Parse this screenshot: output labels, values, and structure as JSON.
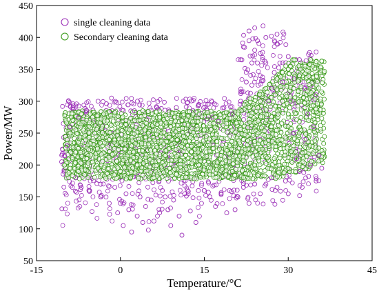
{
  "chart_data": {
    "type": "scatter",
    "title": "",
    "xlabel": "Temperature/°C",
    "ylabel": "Power/MW",
    "xlim": [
      -15,
      45
    ],
    "ylim": [
      50,
      450
    ],
    "x_ticks": [
      -15,
      0,
      15,
      30,
      45
    ],
    "y_ticks": [
      50,
      100,
      150,
      200,
      250,
      300,
      350,
      400,
      450
    ],
    "grid": false,
    "legend_position": "top-left",
    "series": [
      {
        "name": "single cleaning data",
        "color": "#9b30b8",
        "marker": "open-circle",
        "points": [
          [
            -10.5,
            205
          ],
          [
            -10,
            215
          ],
          [
            -9.5,
            230
          ],
          [
            -9,
            260
          ],
          [
            -8.5,
            290
          ],
          [
            -8,
            180
          ],
          [
            -7.5,
            275
          ],
          [
            -7,
            165
          ],
          [
            -6,
            285
          ],
          [
            -5.5,
            160
          ],
          [
            -4,
            300
          ],
          [
            -3.5,
            150
          ],
          [
            -2.5,
            296
          ],
          [
            -2,
            140
          ],
          [
            -1.5,
            285
          ],
          [
            -1,
            165
          ],
          [
            -0.5,
            125
          ],
          [
            0,
            140
          ],
          [
            0.5,
            105
          ],
          [
            1,
            155
          ],
          [
            1.5,
            130
          ],
          [
            2,
            95
          ],
          [
            2.5,
            285
          ],
          [
            3,
            120
          ],
          [
            3.5,
            150
          ],
          [
            4,
            110
          ],
          [
            4.5,
            135
          ],
          [
            5,
            98
          ],
          [
            5.5,
            145
          ],
          [
            6,
            112
          ],
          [
            6.5,
            290
          ],
          [
            7,
            125
          ],
          [
            7.5,
            160
          ],
          [
            8,
            150
          ],
          [
            8.5,
            130
          ],
          [
            9,
            105
          ],
          [
            9.5,
            145
          ],
          [
            10,
            290
          ],
          [
            10.5,
            120
          ],
          [
            11,
            90
          ],
          [
            11.5,
            155
          ],
          [
            12,
            298
          ],
          [
            12.5,
            128
          ],
          [
            13,
            285
          ],
          [
            13.5,
            110
          ],
          [
            14,
            295
          ],
          [
            14.5,
            140
          ],
          [
            15,
            160
          ],
          [
            15.5,
            272
          ],
          [
            16,
            150
          ],
          [
            16.5,
            275
          ],
          [
            17,
            135
          ],
          [
            17.5,
            268
          ],
          [
            18,
            155
          ],
          [
            18.5,
            290
          ],
          [
            19,
            125
          ],
          [
            19.5,
            160
          ],
          [
            20,
            280
          ],
          [
            20.5,
            130
          ],
          [
            21,
            150
          ],
          [
            21.5,
            300
          ],
          [
            22,
            165
          ],
          [
            22.5,
            330
          ],
          [
            23,
            140
          ],
          [
            23.5,
            360
          ],
          [
            23,
            410
          ],
          [
            24,
            415
          ],
          [
            24.5,
            395
          ],
          [
            25,
            340
          ],
          [
            25.5,
            418
          ],
          [
            24,
            380
          ],
          [
            23.5,
            325
          ],
          [
            26,
            360
          ],
          [
            26.5,
            300
          ],
          [
            27,
            402
          ],
          [
            27.5,
            345
          ],
          [
            28,
            390
          ],
          [
            28.5,
            360
          ],
          [
            27,
            320
          ],
          [
            26,
            400
          ],
          [
            25,
            375
          ],
          [
            22,
            385
          ],
          [
            21.5,
            365
          ],
          [
            22.5,
            345
          ],
          [
            23,
            395
          ],
          [
            24.5,
            360
          ],
          [
            28,
            405
          ],
          [
            29,
            330
          ],
          [
            30,
            370
          ],
          [
            30.5,
            300
          ],
          [
            31,
            250
          ],
          [
            31.5,
            210
          ],
          [
            32,
            190
          ],
          [
            32.5,
            165
          ],
          [
            33,
            240
          ],
          [
            33.5,
            280
          ],
          [
            34,
            200
          ],
          [
            34.5,
            260
          ],
          [
            35,
            175
          ],
          [
            35.5,
            215
          ],
          [
            36,
            195
          ],
          [
            33,
            320
          ],
          [
            32,
            365
          ],
          [
            31,
            335
          ],
          [
            29.5,
            175
          ],
          [
            28,
            165
          ],
          [
            27,
            180
          ],
          [
            26,
            170
          ],
          [
            25,
            155
          ],
          [
            24,
            170
          ],
          [
            30,
            155
          ],
          [
            35,
            310
          ]
        ]
      },
      {
        "name": "Secondary cleaning data",
        "color": "#3a9a1a",
        "marker": "open-circle",
        "points": [
          [
            -10,
            200
          ],
          [
            -9.5,
            240
          ],
          [
            -9,
            250
          ],
          [
            -9,
            195
          ],
          [
            -8.5,
            270
          ],
          [
            -8,
            220
          ],
          [
            -7.5,
            190
          ],
          [
            -7,
            280
          ],
          [
            -6,
            210
          ],
          [
            -5,
            275
          ],
          [
            -4,
            195
          ],
          [
            -3,
            280
          ],
          [
            -2,
            240
          ],
          [
            -1,
            282
          ],
          [
            0,
            190
          ],
          [
            1,
            270
          ],
          [
            2,
            230
          ],
          [
            3,
            200
          ],
          [
            4,
            285
          ],
          [
            5,
            250
          ],
          [
            6,
            180
          ],
          [
            7,
            275
          ],
          [
            8,
            215
          ],
          [
            9,
            260
          ],
          [
            10,
            185
          ],
          [
            11,
            270
          ],
          [
            12,
            230
          ],
          [
            13,
            280
          ],
          [
            14,
            200
          ],
          [
            15,
            255
          ],
          [
            16,
            185
          ],
          [
            17,
            275
          ],
          [
            18,
            215
          ],
          [
            19,
            265
          ],
          [
            20,
            190
          ],
          [
            21,
            280
          ],
          [
            22,
            240
          ],
          [
            23,
            290
          ],
          [
            24,
            200
          ],
          [
            25,
            300
          ],
          [
            26,
            320
          ],
          [
            27,
            260
          ],
          [
            28,
            335
          ],
          [
            29,
            300
          ],
          [
            30,
            350
          ],
          [
            31,
            230
          ],
          [
            32,
            340
          ],
          [
            33,
            355
          ],
          [
            34,
            365
          ],
          [
            35,
            362
          ],
          [
            36,
            363
          ],
          [
            33,
            290
          ],
          [
            32,
            260
          ],
          [
            31,
            320
          ],
          [
            30,
            280
          ],
          [
            29,
            345
          ]
        ]
      }
    ]
  }
}
